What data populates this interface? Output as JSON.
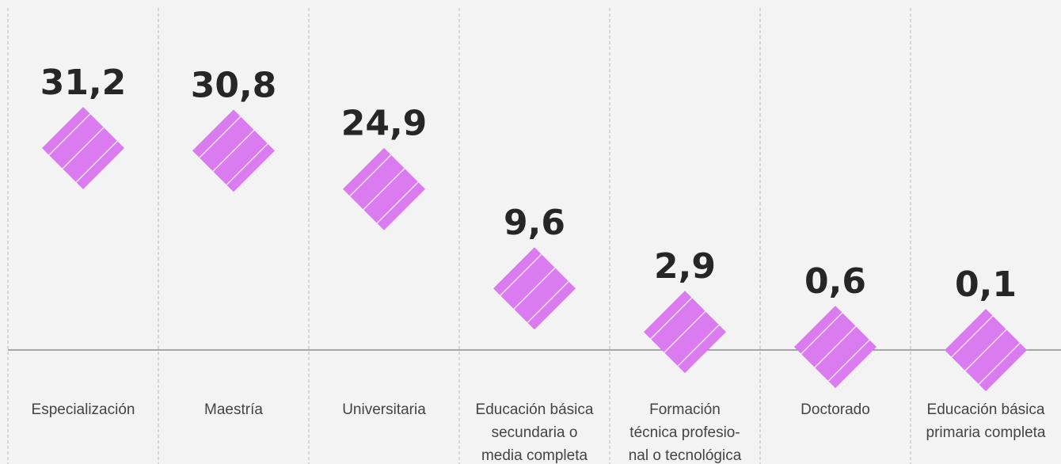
{
  "chart_data": {
    "type": "diamond",
    "categories": [
      [
        "Especialización"
      ],
      [
        "Maestría"
      ],
      [
        "Universitaria"
      ],
      [
        "Educación básica",
        "secundaria o",
        "media completa"
      ],
      [
        "Formación",
        "técnica profesio-",
        "nal o tecnológica"
      ],
      [
        "Doctorado"
      ],
      [
        "Educación básica",
        "primaria completa"
      ]
    ],
    "values": [
      31.2,
      30.8,
      24.9,
      9.6,
      2.9,
      0.6,
      0.1
    ],
    "value_labels": [
      "31,2",
      "30,8",
      "24,9",
      "9,6",
      "2,9",
      "0,6",
      "0,1"
    ],
    "color": "#da7cf0",
    "ylim": [
      0,
      54
    ]
  }
}
